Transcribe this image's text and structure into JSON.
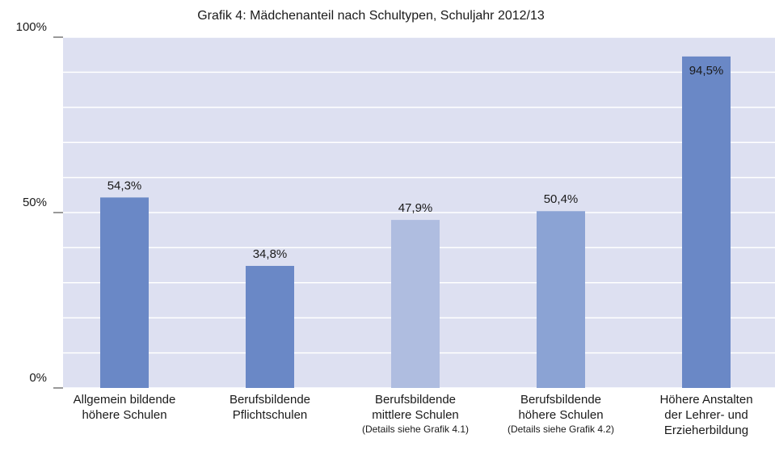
{
  "chart_data": {
    "type": "bar",
    "title": "Grafik 4: Mädchenanteil nach Schultypen, Schuljahr 2012/13",
    "categories": [
      "Allgemein bildende\nhöhere Schulen",
      "Berufsbildende\nPflichtschulen",
      "Berufsbildende\nmittlere Schulen",
      "Berufsbildende\nhöhere Schulen",
      "Höhere Anstalten\nder Lehrer- und\nErzieherbildung"
    ],
    "category_notes": [
      null,
      null,
      "(Details siehe Grafik 4.1)",
      "(Details siehe Grafik 4.2)",
      null
    ],
    "values": [
      54.3,
      34.8,
      47.9,
      50.4,
      94.5
    ],
    "value_labels": [
      "54,3%",
      "34,8%",
      "47,9%",
      "50,4%",
      "94,5%"
    ],
    "colors": [
      "#6a88c6",
      "#6a88c6",
      "#afbde0",
      "#8ba3d4",
      "#6a88c6"
    ],
    "ylim": [
      0,
      100
    ],
    "yticks": [
      {
        "value": 0,
        "label": "0%"
      },
      {
        "value": 50,
        "label": "50%"
      },
      {
        "value": 100,
        "label": "100%"
      }
    ],
    "minor_yticks": [
      10,
      20,
      30,
      40,
      60,
      70,
      80,
      90
    ],
    "grid": true,
    "background": "#dde0f1"
  }
}
